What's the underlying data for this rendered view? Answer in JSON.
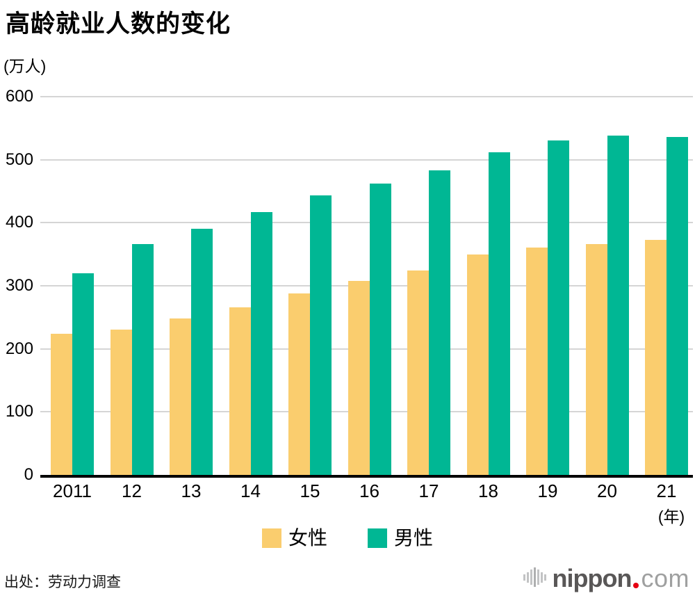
{
  "page": {
    "title": "高龄就业人数的变化",
    "unit_label": "(万人)",
    "year_suffix": "(年)",
    "source": "出处：劳动力调查"
  },
  "logo": {
    "icon": "soundwave-bars-icon",
    "brand": "nippon",
    "tld": "com",
    "brand_color": "#595757",
    "tld_color": "#9FA0A0",
    "dot_color": "#E60012"
  },
  "colors": {
    "female": "#FACD6E",
    "male": "#00B794",
    "gridline": "#D5D5D5",
    "axis": "#000000"
  },
  "chart_data": {
    "type": "bar",
    "title": "高龄就业人数的变化",
    "ylabel": "(万人)",
    "xlabel": "(年)",
    "categories": [
      "2011",
      "12",
      "13",
      "14",
      "15",
      "16",
      "17",
      "18",
      "19",
      "20",
      "21"
    ],
    "series": [
      {
        "name": "女性",
        "color": "#FACD6E",
        "values": [
          224,
          231,
          248,
          266,
          288,
          308,
          324,
          350,
          361,
          366,
          373
        ]
      },
      {
        "name": "男性",
        "color": "#00B794",
        "values": [
          320,
          366,
          390,
          417,
          443,
          462,
          483,
          512,
          531,
          538,
          536
        ]
      }
    ],
    "ylim": [
      0,
      600
    ],
    "yticks": [
      0,
      100,
      200,
      300,
      400,
      500,
      600
    ],
    "grid": true,
    "legend_position": "bottom",
    "source": "出处：劳动力调查"
  }
}
